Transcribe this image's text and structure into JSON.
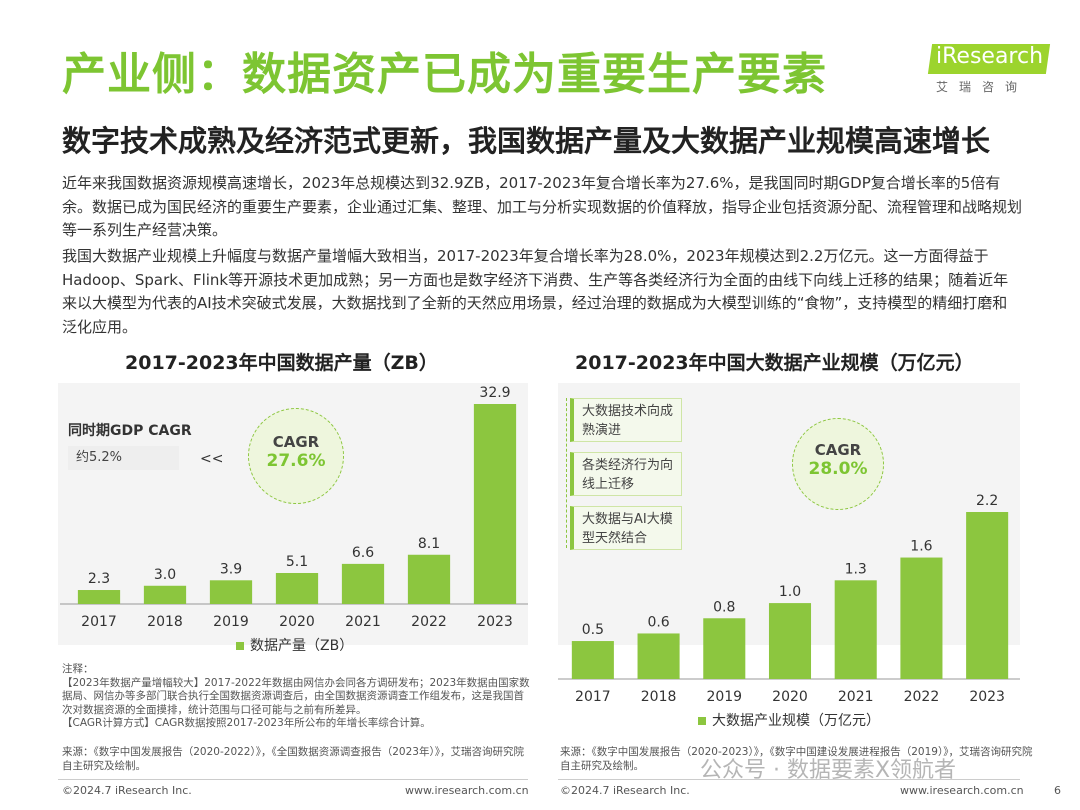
{
  "header": {
    "title": "产业侧：数据资产已成为重要生产要素",
    "subtitle": "数字技术成熟及经济范式更新，我国数据产量及大数据产业规模高速增长",
    "logo_text": "iResearch",
    "logo_sub": "艾瑞咨询"
  },
  "body": {
    "para1": "近年来我国数据资源规模高速增长，2023年总规模达到32.9ZB，2017-2023年复合增长率为27.6%，是我国同时期GDP复合增长率的5倍有余。数据已成为国民经济的重要生产要素，企业通过汇集、整理、加工与分析实现数据的价值释放，指导企业包括资源分配、流程管理和战略规划等一系列生产经营决策。",
    "para2": "我国大数据产业规模上升幅度与数据产量增幅大致相当，2017-2023年复合增长率为28.0%，2023年规模达到2.2万亿元。这一方面得益于Hadoop、Spark、Flink等开源技术更加成熟；另一方面也是数字经济下消费、生产等各类经济行为全面的由线下向线上迁移的结果；随着近年来以大模型为代表的AI技术突破式发展，大数据找到了全新的天然应用场景，经过治理的数据成为大模型训练的“食物”，支持模型的精细打磨和泛化应用。"
  },
  "left_panel": {
    "gdp_label": "同时期GDP CAGR",
    "gdp_value": "约5.2%",
    "compare": "<<",
    "cagr_label": "CAGR",
    "cagr_value": "27.6%",
    "notes": [
      "注释：",
      "【2023年数据产量增幅较大】2017-2022年数据由网信办会同各方调研发布；2023年数据由国家数据局、网信办等多部门联合执行全国数据资源调查后，由全国数据资源调查工作组发布，这是我国首次对数据资源的全面摸排，统计范围与口径可能与之前有所差异。",
      "【CAGR计算方式】CAGR数据按照2017-2023年所公布的年增长率综合计算。"
    ],
    "source": "来源：《数字中国发展报告（2020-2022）》，《全国数据资源调查报告（2023年）》，艾瑞咨询研究院自主研究及绘制。",
    "footer_left": "©2024.7 iResearch Inc.",
    "footer_right": "www.iresearch.com.cn"
  },
  "right_panel": {
    "drivers": [
      "大数据技术向成熟演进",
      "各类经济行为向线上迁移",
      "大数据与AI大模型天然结合"
    ],
    "cagr_label": "CAGR",
    "cagr_value": "28.0%",
    "source": "来源：《数字中国发展报告（2020-2023）》，《数字中国建设发展进程报告（2019）》，艾瑞咨询研究院自主研究及绘制。",
    "footer_left": "©2024.7 iResearch Inc.",
    "footer_right": "www.iresearch.com.cn",
    "watermark": "公众号 · 数据要素X领航者",
    "page_number": "6"
  },
  "chart_data": [
    {
      "type": "bar",
      "title": "2017-2023年中国数据产量（ZB）",
      "categories": [
        "2017",
        "2018",
        "2019",
        "2020",
        "2021",
        "2022",
        "2023"
      ],
      "series": [
        {
          "name": "数据产量（ZB）",
          "values": [
            2.3,
            3.0,
            3.9,
            5.1,
            6.6,
            8.1,
            32.9
          ]
        }
      ],
      "value_labels": [
        "2.3",
        "3.0",
        "3.9",
        "5.1",
        "6.6",
        "8.1",
        "32.9"
      ],
      "ylim": [
        0,
        32.9
      ],
      "color": "#8cc63f",
      "legend": "bottom"
    },
    {
      "type": "bar",
      "title": "2017-2023年中国大数据产业规模（万亿元）",
      "categories": [
        "2017",
        "2018",
        "2019",
        "2020",
        "2021",
        "2022",
        "2023"
      ],
      "series": [
        {
          "name": "大数据产业规模（万亿元）",
          "values": [
            0.5,
            0.6,
            0.8,
            1.0,
            1.3,
            1.6,
            2.2
          ]
        }
      ],
      "value_labels": [
        "0.5",
        "0.6",
        "0.8",
        "1.0",
        "1.3",
        "1.6",
        "2.2"
      ],
      "ylim": [
        0,
        2.2
      ],
      "color": "#8cc63f",
      "legend": "bottom"
    }
  ]
}
